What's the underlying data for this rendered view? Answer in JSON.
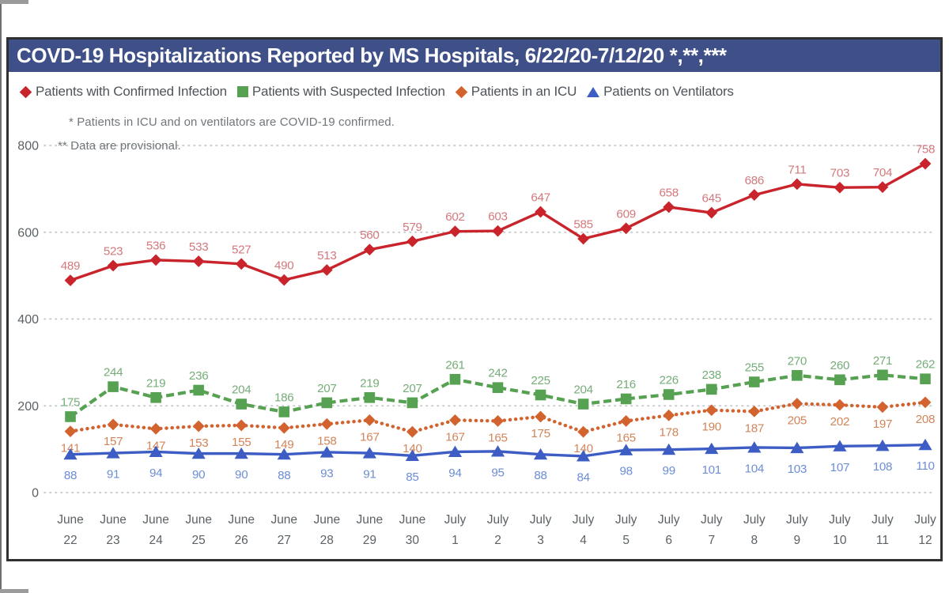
{
  "page": {
    "title_bar": {
      "text": "COVD-19 Hospitalizations Reported by MS Hospitals, 6/22/20-7/12/20 *,**,***",
      "background_color": "#3F5089",
      "text_color": "#FFFFFF"
    },
    "footnotes": [
      "* Patients in ICU and on ventilators are COVID-19 confirmed.",
      "** Data are provisional."
    ]
  },
  "legend": [
    {
      "label": "Patients with Confirmed Infection",
      "marker": "diamond",
      "color": "#C9242B"
    },
    {
      "label": "Patients with Suspected Infection",
      "marker": "square",
      "color": "#56A152"
    },
    {
      "label": "Patients in an ICU",
      "marker": "diamond",
      "color": "#D2622E"
    },
    {
      "label": "Patients on Ventilators",
      "marker": "triangle",
      "color": "#3D5DC4"
    }
  ],
  "chart_data": {
    "type": "line",
    "title": "COVD-19 Hospitalizations Reported by MS Hospitals, 6/22/20-7/12/20 *,**,***",
    "categories": [
      "June 22",
      "June 23",
      "June 24",
      "June 25",
      "June 26",
      "June 27",
      "June 28",
      "June 29",
      "June 30",
      "July 1",
      "July 2",
      "July 3",
      "July 4",
      "July 5",
      "July 6",
      "July 7",
      "July 8",
      "July 9",
      "July 10",
      "July 11",
      "July 12"
    ],
    "series": [
      {
        "name": "Patients with Confirmed Infection",
        "color": "#C9242B",
        "label_color": "#D3797D",
        "marker": "diamond",
        "line_style": "solid",
        "label_position": "above",
        "values": [
          489,
          523,
          536,
          533,
          527,
          490,
          513,
          560,
          579,
          602,
          603,
          647,
          585,
          609,
          658,
          645,
          686,
          711,
          703,
          704,
          758
        ]
      },
      {
        "name": "Patients with Suspected Infection",
        "color": "#56A152",
        "label_color": "#76AD78",
        "marker": "square",
        "line_style": "dashed",
        "label_position": "above",
        "values": [
          175,
          244,
          219,
          236,
          204,
          186,
          207,
          219,
          207,
          261,
          242,
          225,
          204,
          216,
          226,
          238,
          255,
          270,
          260,
          271,
          262
        ]
      },
      {
        "name": "Patients in an ICU",
        "color": "#D2622E",
        "label_color": "#D1855A",
        "marker": "diamond",
        "line_style": "dotted",
        "label_position": "below",
        "values": [
          141,
          157,
          147,
          153,
          155,
          149,
          158,
          167,
          140,
          167,
          165,
          175,
          140,
          165,
          178,
          190,
          187,
          205,
          202,
          197,
          208
        ]
      },
      {
        "name": "Patients on Ventilators",
        "color": "#3D5DC4",
        "label_color": "#6D8DD6",
        "marker": "triangle",
        "line_style": "solid",
        "label_position": "below",
        "values": [
          88,
          91,
          94,
          90,
          90,
          88,
          93,
          91,
          85,
          94,
          95,
          88,
          84,
          98,
          99,
          101,
          104,
          103,
          107,
          108,
          110
        ]
      }
    ],
    "ylim": [
      0,
      800
    ],
    "yticks": [
      0,
      200,
      400,
      600,
      800
    ],
    "grid": "horizontal-dotted",
    "grid_color": "#C3C6C8",
    "axis_text_color": "#5B6165",
    "legend_position": "top"
  }
}
